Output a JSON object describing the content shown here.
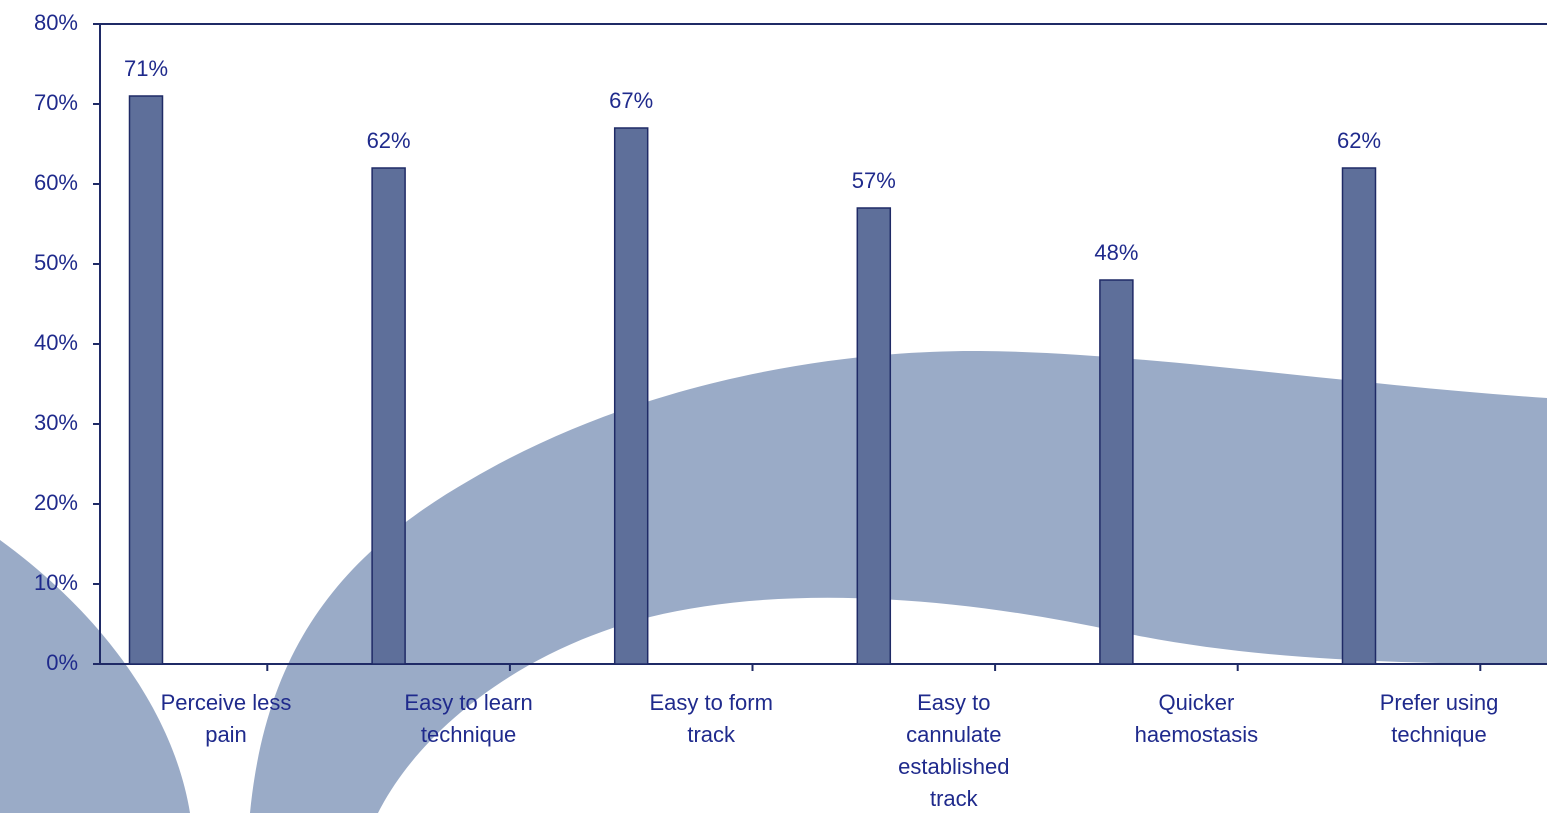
{
  "chart_data": {
    "type": "bar",
    "title": "",
    "xlabel": "",
    "ylabel": "",
    "categories": [
      [
        "Perceive less",
        "pain"
      ],
      [
        "Easy to learn",
        "technique"
      ],
      [
        "Easy to form",
        "track"
      ],
      [
        "Easy to",
        "cannulate",
        "established",
        "track"
      ],
      [
        "Quicker",
        "haemostasis"
      ],
      [
        "Prefer using",
        "technique"
      ]
    ],
    "values": [
      71,
      62,
      67,
      57,
      48,
      62
    ],
    "data_labels": [
      "71%",
      "62%",
      "67%",
      "57%",
      "48%",
      "62%"
    ],
    "ylim": [
      0,
      80
    ],
    "y_ticks": [
      {
        "value": 0,
        "label": "0%"
      },
      {
        "value": 10,
        "label": "10%"
      },
      {
        "value": 20,
        "label": "20%"
      },
      {
        "value": 30,
        "label": "30%"
      },
      {
        "value": 40,
        "label": "40%"
      },
      {
        "value": 50,
        "label": "50%"
      },
      {
        "value": 60,
        "label": "60%"
      },
      {
        "value": 70,
        "label": "70%"
      },
      {
        "value": 80,
        "label": "80%"
      }
    ],
    "grid": false,
    "legend": "none",
    "colors": {
      "bar_fill": "#5e6f9a",
      "bar_stroke": "#1f2a66",
      "axis": "#1f2a66",
      "text": "#1f2a8c",
      "background_swoosh": "#9aabc7"
    }
  }
}
